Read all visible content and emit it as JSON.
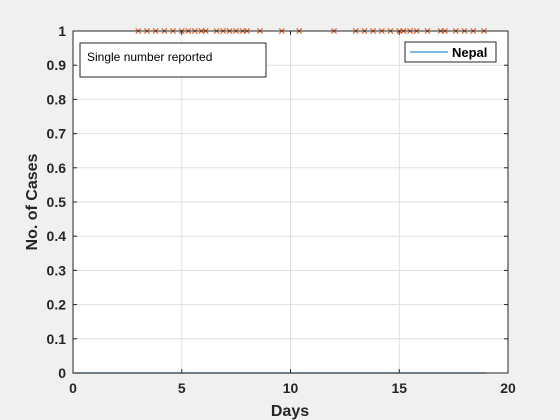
{
  "chart_data": {
    "type": "line",
    "xlabel": "Days",
    "ylabel": "No. of Cases",
    "xlim": [
      0,
      20
    ],
    "ylim": [
      0,
      1
    ],
    "xticks": [
      0,
      5,
      10,
      15,
      20
    ],
    "yticks": [
      0,
      0.1,
      0.2,
      0.3,
      0.4,
      0.5,
      0.6,
      0.7,
      0.8,
      0.9,
      1
    ],
    "ytick_labels": [
      "0",
      "0.1",
      "0.2",
      "0.3",
      "0.4",
      "0.5",
      "0.6",
      "0.7",
      "0.8",
      "0.9",
      "1"
    ],
    "grid": true,
    "legend_position": "top-right",
    "series": [
      {
        "name": "Nepal",
        "kind": "line",
        "color": "#0072bd",
        "x": [
          0,
          19
        ],
        "y": [
          0,
          0
        ]
      },
      {
        "kind": "marker-x",
        "color": "#d95319",
        "x": [
          3.0,
          3.4,
          3.8,
          4.2,
          4.6,
          5.0,
          5.3,
          5.6,
          5.9,
          6.1,
          6.6,
          6.9,
          7.2,
          7.5,
          7.8,
          8.0,
          8.6,
          9.6,
          10.4,
          12.0,
          13.0,
          13.4,
          13.8,
          14.2,
          14.6,
          15.0,
          15.2,
          15.5,
          15.8,
          16.3,
          16.9,
          17.1,
          17.6,
          18.0,
          18.4,
          18.9
        ],
        "y": [
          1,
          1,
          1,
          1,
          1,
          1,
          1,
          1,
          1,
          1,
          1,
          1,
          1,
          1,
          1,
          1,
          1,
          1,
          1,
          1,
          1,
          1,
          1,
          1,
          1,
          1,
          1,
          1,
          1,
          1,
          1,
          1,
          1,
          1,
          1,
          1
        ]
      }
    ],
    "annotation": "Single number reported"
  },
  "colors": {
    "figure_bg": "#f0f0f0",
    "axes_bg": "#ffffff",
    "grid": "#dfdfdf",
    "axis": "#262626"
  }
}
